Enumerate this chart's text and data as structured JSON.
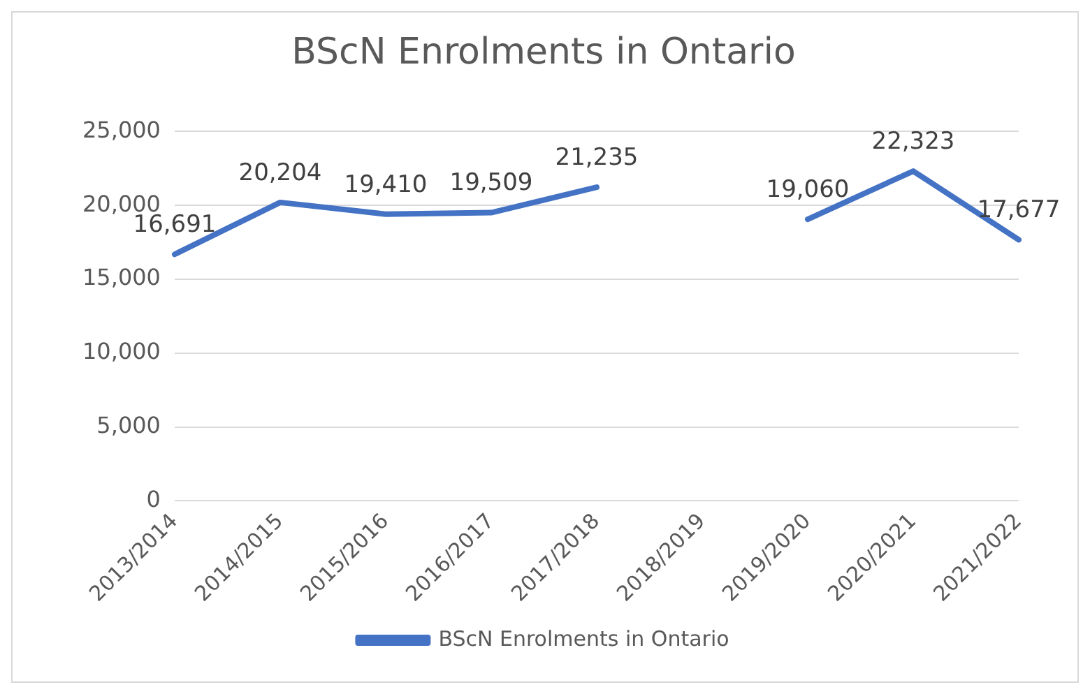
{
  "chart_data": {
    "type": "line",
    "title": "BScN Enrolments in Ontario",
    "categories": [
      "2013/2014",
      "2014/2015",
      "2015/2016",
      "2016/2017",
      "2017/2018",
      "2018/2019",
      "2019/2020",
      "2020/2021",
      "2021/2022"
    ],
    "series": [
      {
        "name": "BScN Enrolments in Ontario",
        "color": "#4472c4",
        "values": [
          16691,
          20204,
          19410,
          19509,
          21235,
          null,
          19060,
          22323,
          17677
        ],
        "value_labels": [
          "16,691",
          "20,204",
          "19,410",
          "19,509",
          "21,235",
          null,
          "19,060",
          "22,323",
          "17,677"
        ]
      }
    ],
    "ylim": [
      0,
      25000
    ],
    "yticks": [
      0,
      {
        "value": 5000,
        "label": "5,000"
      },
      {
        "value": 10000,
        "label": "10,000"
      },
      {
        "value": 15000,
        "label": "15,000"
      },
      {
        "value": 20000,
        "label": "20,000"
      },
      {
        "value": 25000,
        "label": "25,000"
      }
    ],
    "grid": "y",
    "legend": "bottom",
    "marker": "none",
    "line_style": "solid"
  }
}
